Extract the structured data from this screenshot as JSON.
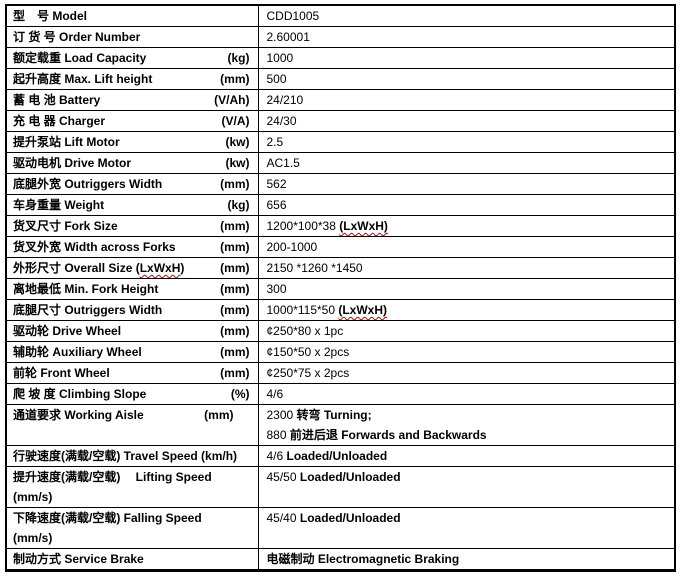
{
  "document": {
    "type": "specification-table",
    "model_value": "CDD1005",
    "text_color": "#000000",
    "grid_color": "#000000",
    "background_color": "#ffffff",
    "spellcheck_underline_color": "#d00000"
  },
  "table": {
    "columns": [
      "parameter",
      "value"
    ],
    "rows": [
      {
        "label": [
          [
            {
              "t": "型　号 Model"
            }
          ]
        ],
        "unit": "",
        "value": [
          [
            {
              "t": "CDD1005"
            }
          ]
        ]
      },
      {
        "label": [
          [
            {
              "t": "订 货 号 Order Number"
            }
          ]
        ],
        "unit": "",
        "value": [
          [
            {
              "t": "2.60001"
            }
          ]
        ]
      },
      {
        "label": [
          [
            {
              "t": "额定载重 Load Capacity"
            }
          ]
        ],
        "unit": "(kg)",
        "value": [
          [
            {
              "t": "1000"
            }
          ]
        ]
      },
      {
        "label": [
          [
            {
              "t": "起升高度 Max. Lift height"
            }
          ]
        ],
        "unit": "(mm)",
        "value": [
          [
            {
              "t": "500"
            }
          ]
        ]
      },
      {
        "label": [
          [
            {
              "t": "蓄 电 池 Battery"
            }
          ]
        ],
        "unit": "(V/Ah)",
        "value": [
          [
            {
              "t": "24/210"
            }
          ]
        ]
      },
      {
        "label": [
          [
            {
              "t": "充 电 器 Charger"
            }
          ]
        ],
        "unit": "(V/A)",
        "value": [
          [
            {
              "t": "24/30"
            }
          ]
        ]
      },
      {
        "label": [
          [
            {
              "t": "提升泵站 Lift Motor"
            }
          ]
        ],
        "unit": "(kw)",
        "value": [
          [
            {
              "t": "2.5"
            }
          ]
        ]
      },
      {
        "label": [
          [
            {
              "t": "驱动电机 Drive Motor"
            }
          ]
        ],
        "unit": "(kw)",
        "value": [
          [
            {
              "t": "AC1.5"
            }
          ]
        ]
      },
      {
        "label": [
          [
            {
              "t": "底腿外宽 Outriggers Width"
            }
          ]
        ],
        "unit": "(mm)",
        "value": [
          [
            {
              "t": "562"
            }
          ]
        ]
      },
      {
        "label": [
          [
            {
              "t": "车身重量 Weight"
            }
          ]
        ],
        "unit": "(kg)",
        "value": [
          [
            {
              "t": "656"
            }
          ]
        ]
      },
      {
        "label": [
          [
            {
              "t": "货叉尺寸 Fork Size"
            }
          ]
        ],
        "unit": "(mm)",
        "value": [
          [
            {
              "t": "1200*100*38 "
            },
            {
              "t": "(LxWxH)",
              "b": true,
              "w": true
            }
          ]
        ]
      },
      {
        "label": [
          [
            {
              "t": "货叉外宽  Width across Forks"
            }
          ]
        ],
        "unit": "(mm)",
        "value": [
          [
            {
              "t": "200-1000"
            }
          ]
        ]
      },
      {
        "label": [
          [
            {
              "t": "外形尺寸 Overall Size ("
            },
            {
              "t": "LxWxH",
              "w": true
            },
            {
              "t": ")"
            }
          ]
        ],
        "unit": "(mm)",
        "value": [
          [
            {
              "t": "2150 *1260 *1450"
            }
          ]
        ]
      },
      {
        "label": [
          [
            {
              "t": "离地最低 Min. Fork Height"
            }
          ]
        ],
        "unit": "(mm)",
        "value": [
          [
            {
              "t": "300"
            }
          ]
        ]
      },
      {
        "label": [
          [
            {
              "t": "底腿尺寸  Outriggers Width"
            }
          ]
        ],
        "unit": "(mm)",
        "value": [
          [
            {
              "t": "1000*115*50 "
            },
            {
              "t": "(LxWxH)",
              "b": true,
              "w": true
            }
          ]
        ]
      },
      {
        "label": [
          [
            {
              "t": "驱动轮  Drive Wheel"
            }
          ]
        ],
        "unit": "(mm)",
        "value": [
          [
            {
              "t": "¢250*80 x 1pc"
            }
          ]
        ]
      },
      {
        "label": [
          [
            {
              "t": "辅助轮 Auxiliary Wheel"
            }
          ]
        ],
        "unit": "(mm)",
        "value": [
          [
            {
              "t": "¢150*50 x 2pcs"
            }
          ]
        ]
      },
      {
        "label": [
          [
            {
              "t": "前轮 Front Wheel"
            }
          ]
        ],
        "unit": "(mm)",
        "value": [
          [
            {
              "t": "¢250*75 x 2pcs"
            }
          ]
        ]
      },
      {
        "label": [
          [
            {
              "t": "爬 坡 度 Climbing Slope"
            }
          ]
        ],
        "unit": "(%)",
        "value": [
          [
            {
              "t": "4/6"
            }
          ]
        ]
      },
      {
        "label": [
          [
            {
              "t": "通道要求 Working Aisle"
            }
          ]
        ],
        "unit": "(mm)",
        "unit_indent": true,
        "value": [
          [
            {
              "t": "2300 "
            },
            {
              "t": "转弯 Turning;",
              "b": true
            }
          ],
          [
            {
              "t": "880 "
            },
            {
              "t": "前进后退 Forwards and Backwards",
              "b": true
            }
          ]
        ]
      },
      {
        "label": [
          [
            {
              "t": "行驶速度(满载/空载) Travel Speed (km/h)"
            }
          ]
        ],
        "unit": "",
        "value": [
          [
            {
              "t": "4/6 "
            },
            {
              "t": "Loaded/Unloaded",
              "b": true
            }
          ]
        ]
      },
      {
        "label": [
          [
            {
              "t": "提升速度(满载/空载)　 Lifting Speed"
            }
          ],
          [
            {
              "t": "(mm/s)"
            }
          ]
        ],
        "unit": "",
        "value": [
          [
            {
              "t": "45/50 "
            },
            {
              "t": "Loaded/Unloaded",
              "b": true
            }
          ]
        ]
      },
      {
        "label": [
          [
            {
              "t": "下降速度(满载/空载) Falling Speed"
            }
          ],
          [
            {
              "t": "(mm/s)"
            }
          ]
        ],
        "unit": "",
        "value": [
          [
            {
              "t": "45/40 "
            },
            {
              "t": "Loaded/Unloaded",
              "b": true
            }
          ]
        ]
      },
      {
        "label": [
          [
            {
              "t": "制动方式 Service Brake"
            }
          ]
        ],
        "unit": "",
        "value": [
          [
            {
              "t": "电磁制动 Electromagnetic Braking",
              "b": true
            }
          ]
        ]
      }
    ]
  }
}
